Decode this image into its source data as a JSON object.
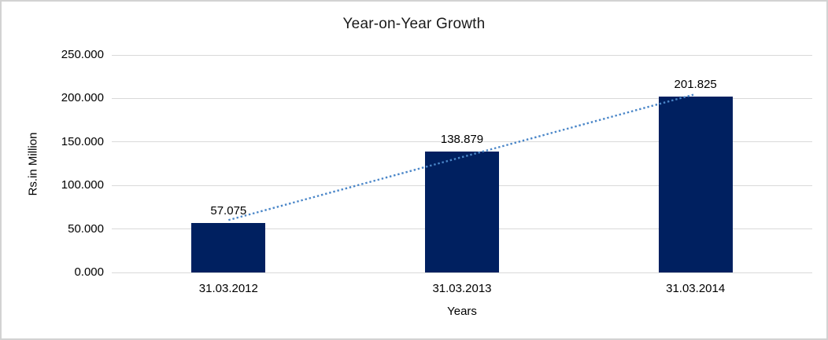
{
  "chart_data": {
    "type": "bar",
    "title": "Year-on-Year Growth",
    "xlabel": "Years",
    "ylabel": "Rs.in Million",
    "categories": [
      "31.03.2012",
      "31.03.2013",
      "31.03.2014"
    ],
    "values": [
      57.075,
      138.879,
      201.825
    ],
    "value_labels": [
      "57.075",
      "138.879",
      "201.825"
    ],
    "y_ticks": {
      "values": [
        0,
        50,
        100,
        150,
        200,
        250
      ],
      "labels": [
        "0.000",
        "50.000",
        "100.000",
        "150.000",
        "200.000",
        "250.000"
      ]
    },
    "ylim": [
      0,
      250
    ],
    "grid": true,
    "legend": "none",
    "trendline": {
      "type": "linear",
      "style": "dotted"
    },
    "colors": {
      "bar": "#002060",
      "trendline": "#4a86c8",
      "gridline": "#d9d9d9",
      "text": "#000000",
      "border": "#d2d2d2"
    }
  }
}
